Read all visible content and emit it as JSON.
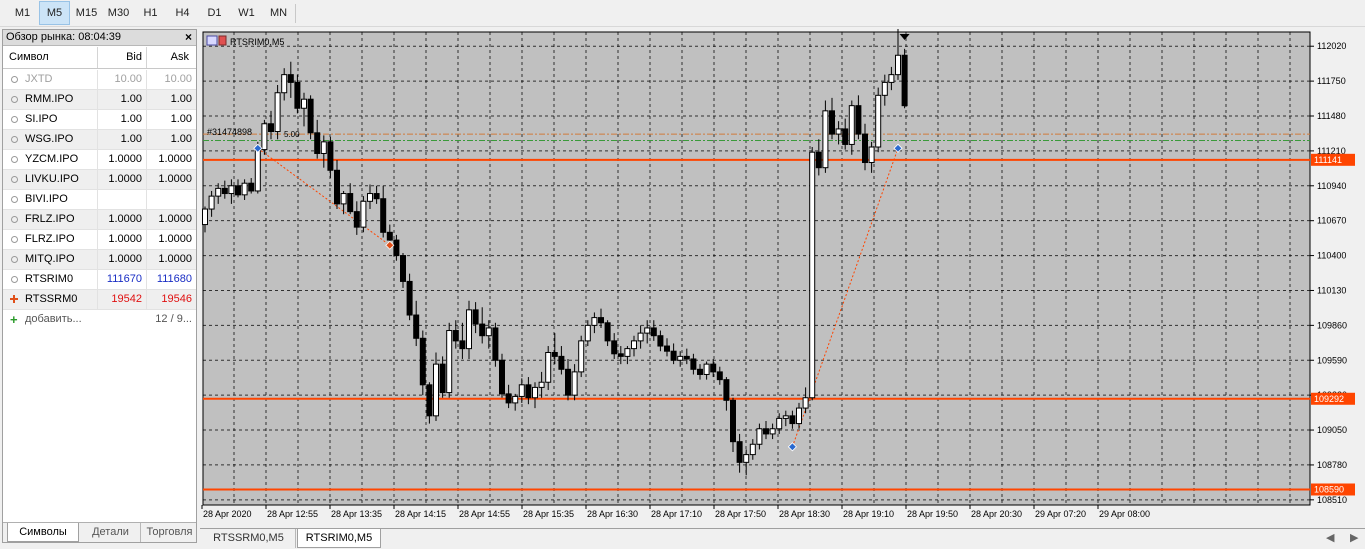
{
  "toolbar": {
    "timeframes": [
      "M1",
      "M5",
      "M15",
      "M30",
      "H1",
      "H4",
      "D1",
      "W1",
      "MN"
    ],
    "active": "M5"
  },
  "market_watch": {
    "title": "Обзор рынка: 08:04:39",
    "close_glyph": "×",
    "columns": {
      "symbol": "Символ",
      "bid": "Bid",
      "ask": "Ask"
    },
    "rows": [
      {
        "symbol": "JXTD",
        "bid": "10.00",
        "ask": "10.00",
        "style": "grey"
      },
      {
        "symbol": "RMM.IPO",
        "bid": "1.00",
        "ask": "1.00",
        "style": "normal"
      },
      {
        "symbol": "SI.IPO",
        "bid": "1.00",
        "ask": "1.00",
        "style": "normal"
      },
      {
        "symbol": "WSG.IPO",
        "bid": "1.00",
        "ask": "1.00",
        "style": "normal"
      },
      {
        "symbol": "YZCM.IPO",
        "bid": "1.0000",
        "ask": "1.0000",
        "style": "normal"
      },
      {
        "symbol": "LIVKU.IPO",
        "bid": "1.0000",
        "ask": "1.0000",
        "style": "normal"
      },
      {
        "symbol": "BIVI.IPO",
        "bid": "",
        "ask": "",
        "style": "normal"
      },
      {
        "symbol": "FRLZ.IPO",
        "bid": "1.0000",
        "ask": "1.0000",
        "style": "normal"
      },
      {
        "symbol": "FLRZ.IPO",
        "bid": "1.0000",
        "ask": "1.0000",
        "style": "normal"
      },
      {
        "symbol": "MITQ.IPO",
        "bid": "1.0000",
        "ask": "1.0000",
        "style": "normal"
      },
      {
        "symbol": "RTSRIM0",
        "bid": "111670",
        "ask": "111680",
        "style": "blue"
      },
      {
        "symbol": "RTSSRM0",
        "bid": "19542",
        "ask": "19546",
        "style": "red"
      }
    ],
    "add_label": "добавить...",
    "count_label": "12 / 9...",
    "tabs": [
      "Символы",
      "Детали",
      "Торговля"
    ],
    "active_tab": "Символы"
  },
  "chart": {
    "title": "RTSRIM0,M5",
    "trade_label": "#31474898",
    "trade_label_suffix": "5.00",
    "colors": {
      "background": "#c0c0c0",
      "grid": "#000000",
      "bull": "#ffffff",
      "bear": "#000000",
      "level": "#ff4500",
      "trade_line": "#ff4500",
      "bid_line": "#d07a3a",
      "ask_line": "#3a9a3a"
    },
    "price_labels": [
      "112020",
      "111750",
      "111480",
      "111210",
      "110940",
      "110670",
      "110400",
      "110130",
      "109860",
      "109590",
      "109320",
      "109050",
      "108780",
      "108510"
    ],
    "level_labels": [
      {
        "label": "111141",
        "price": 111141
      },
      {
        "label": "109292",
        "price": 109292
      },
      {
        "label": "108590",
        "price": 108590
      }
    ],
    "time_labels": [
      "28 Apr 2020",
      "28 Apr 12:55",
      "28 Apr 13:35",
      "28 Apr 14:15",
      "28 Apr 14:55",
      "28 Apr 15:35",
      "28 Apr 16:30",
      "28 Apr 17:10",
      "28 Apr 17:50",
      "28 Apr 18:30",
      "28 Apr 19:10",
      "28 Apr 19:50",
      "28 Apr 20:30",
      "29 Apr 07:20",
      "29 Apr 08:00"
    ],
    "price_range": [
      108470,
      112130
    ],
    "candles": [
      [
        110640,
        110780,
        110580,
        110760
      ],
      [
        110760,
        110900,
        110700,
        110860
      ],
      [
        110860,
        110960,
        110800,
        110920
      ],
      [
        110920,
        110980,
        110840,
        110880
      ],
      [
        110880,
        110990,
        110800,
        110940
      ],
      [
        110940,
        110990,
        110850,
        110870
      ],
      [
        110870,
        110990,
        110830,
        110960
      ],
      [
        110960,
        111000,
        110880,
        110900
      ],
      [
        110900,
        111280,
        110880,
        111220
      ],
      [
        111220,
        111450,
        111180,
        111420
      ],
      [
        111420,
        111520,
        111300,
        111360
      ],
      [
        111360,
        111720,
        111300,
        111660
      ],
      [
        111660,
        111850,
        111600,
        111800
      ],
      [
        111800,
        111900,
        111620,
        111740
      ],
      [
        111740,
        111800,
        111500,
        111540
      ],
      [
        111540,
        111660,
        111400,
        111610
      ],
      [
        111610,
        111640,
        111300,
        111350
      ],
      [
        111350,
        111450,
        111150,
        111190
      ],
      [
        111190,
        111330,
        111080,
        111280
      ],
      [
        111280,
        111320,
        111000,
        111060
      ],
      [
        111060,
        111140,
        110760,
        110800
      ],
      [
        110800,
        110900,
        110720,
        110880
      ],
      [
        110880,
        110960,
        110720,
        110740
      ],
      [
        110740,
        110820,
        110560,
        110620
      ],
      [
        110620,
        110860,
        110580,
        110820
      ],
      [
        110820,
        110950,
        110760,
        110880
      ],
      [
        110880,
        110940,
        110800,
        110840
      ],
      [
        110840,
        110940,
        110540,
        110580
      ],
      [
        110580,
        110640,
        110460,
        110520
      ],
      [
        110520,
        110560,
        110360,
        110400
      ],
      [
        110400,
        110420,
        110150,
        110200
      ],
      [
        110200,
        110260,
        109900,
        109940
      ],
      [
        109940,
        110050,
        109700,
        109760
      ],
      [
        109760,
        109820,
        109320,
        109400
      ],
      [
        109400,
        109420,
        109100,
        109160
      ],
      [
        109160,
        109650,
        109120,
        109560
      ],
      [
        109560,
        109620,
        109300,
        109340
      ],
      [
        109340,
        109880,
        109300,
        109820
      ],
      [
        109820,
        109900,
        109680,
        109740
      ],
      [
        109740,
        109880,
        109600,
        109680
      ],
      [
        109680,
        110050,
        109600,
        109980
      ],
      [
        109980,
        110040,
        109800,
        109870
      ],
      [
        109870,
        110000,
        109720,
        109780
      ],
      [
        109780,
        109900,
        109680,
        109840
      ],
      [
        109840,
        109880,
        109540,
        109590
      ],
      [
        109590,
        109640,
        109300,
        109330
      ],
      [
        109330,
        109400,
        109220,
        109260
      ],
      [
        109260,
        109330,
        109200,
        109310
      ],
      [
        109310,
        109450,
        109260,
        109400
      ],
      [
        109400,
        109460,
        109250,
        109300
      ],
      [
        109300,
        109420,
        109220,
        109380
      ],
      [
        109380,
        109500,
        109300,
        109420
      ],
      [
        109420,
        109700,
        109360,
        109650
      ],
      [
        109650,
        109800,
        109560,
        109620
      ],
      [
        109620,
        109700,
        109480,
        109520
      ],
      [
        109520,
        109600,
        109280,
        109320
      ],
      [
        109320,
        109560,
        109280,
        109500
      ],
      [
        109500,
        109780,
        109460,
        109740
      ],
      [
        109740,
        109900,
        109700,
        109860
      ],
      [
        109860,
        109960,
        109800,
        109920
      ],
      [
        109920,
        109990,
        109840,
        109880
      ],
      [
        109880,
        109900,
        109700,
        109740
      ],
      [
        109740,
        109800,
        109600,
        109640
      ],
      [
        109640,
        109700,
        109560,
        109620
      ],
      [
        109620,
        109700,
        109560,
        109680
      ],
      [
        109680,
        109780,
        109620,
        109740
      ],
      [
        109740,
        109860,
        109680,
        109800
      ],
      [
        109800,
        109900,
        109720,
        109840
      ],
      [
        109840,
        109900,
        109740,
        109780
      ],
      [
        109780,
        109820,
        109660,
        109700
      ],
      [
        109700,
        109760,
        109620,
        109660
      ],
      [
        109660,
        109720,
        109560,
        109590
      ],
      [
        109590,
        109660,
        109540,
        109620
      ],
      [
        109620,
        109680,
        109560,
        109600
      ],
      [
        109600,
        109640,
        109480,
        109520
      ],
      [
        109520,
        109560,
        109440,
        109480
      ],
      [
        109480,
        109580,
        109440,
        109560
      ],
      [
        109560,
        109600,
        109460,
        109500
      ],
      [
        109500,
        109540,
        109400,
        109440
      ],
      [
        109440,
        109460,
        109200,
        109280
      ],
      [
        109280,
        109300,
        108880,
        108960
      ],
      [
        108960,
        109020,
        108720,
        108800
      ],
      [
        108800,
        108900,
        108700,
        108860
      ],
      [
        108860,
        108980,
        108820,
        108940
      ],
      [
        108940,
        109100,
        108900,
        109060
      ],
      [
        109060,
        109120,
        108980,
        109020
      ],
      [
        109020,
        109100,
        108980,
        109060
      ],
      [
        109060,
        109180,
        109020,
        109140
      ],
      [
        109140,
        109200,
        109080,
        109160
      ],
      [
        109160,
        109200,
        109060,
        109100
      ],
      [
        109100,
        109260,
        109060,
        109220
      ],
      [
        109220,
        109380,
        109180,
        109300
      ],
      [
        109300,
        111240,
        109280,
        111200
      ],
      [
        111200,
        111300,
        111020,
        111080
      ],
      [
        111080,
        111600,
        111040,
        111520
      ],
      [
        111520,
        111620,
        111300,
        111340
      ],
      [
        111340,
        111440,
        111260,
        111380
      ],
      [
        111380,
        111460,
        111220,
        111260
      ],
      [
        111260,
        111600,
        111180,
        111560
      ],
      [
        111560,
        111640,
        111300,
        111340
      ],
      [
        111340,
        111420,
        111060,
        111120
      ],
      [
        111120,
        111280,
        111040,
        111240
      ],
      [
        111240,
        111700,
        111200,
        111640
      ],
      [
        111640,
        111800,
        111560,
        111740
      ],
      [
        111740,
        111860,
        111680,
        111800
      ],
      [
        111800,
        112180,
        111760,
        111950
      ],
      [
        111950,
        112000,
        111540,
        111560
      ]
    ],
    "trade_markers": [
      {
        "index": 8,
        "price": 111230,
        "kind": "buy"
      },
      {
        "index": 28,
        "price": 110480,
        "kind": "sell"
      },
      {
        "index": 89,
        "price": 108920,
        "kind": "buy"
      },
      {
        "index": 105,
        "price": 111230,
        "kind": "buy"
      }
    ],
    "bid_price": 111340,
    "ask_price": 111290
  },
  "chart_tabs": [
    "RTSSRM0,M5",
    "RTSRIM0,M5"
  ],
  "active_chart_tab": "RTSRIM0,M5",
  "tab_nav": {
    "prev": "◀",
    "next": "▶"
  }
}
